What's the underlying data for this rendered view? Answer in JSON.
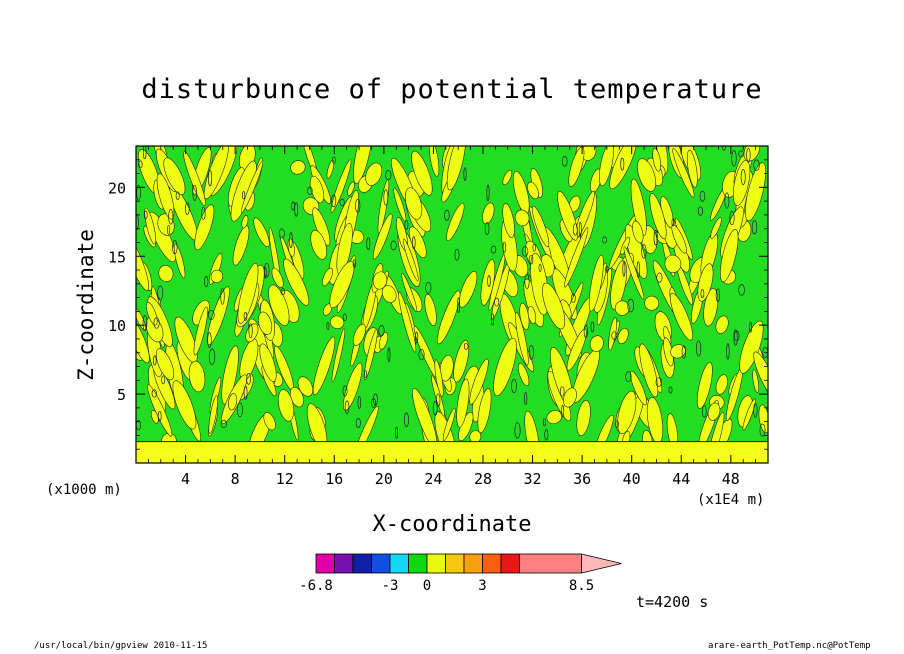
{
  "chart_data": {
    "type": "heatmap",
    "title": "disturbunce of potential temperature",
    "xlabel": "X-coordinate",
    "ylabel": "Z-coordinate",
    "x_unit": "(x1E4 m)",
    "z_unit": "(x1000 m)",
    "xlim": [
      0,
      51
    ],
    "ylim": [
      0,
      23
    ],
    "x_ticks": [
      4,
      8,
      12,
      16,
      20,
      24,
      28,
      32,
      36,
      40,
      44,
      48
    ],
    "y_ticks": [
      5,
      10,
      15,
      20
    ],
    "colorbar": {
      "labels": [
        {
          "text": "-6.8",
          "value": -6.8
        },
        {
          "text": "-3",
          "value": -3
        },
        {
          "text": "0",
          "value": 0
        },
        {
          "text": "3",
          "value": 3
        },
        {
          "text": "8.5",
          "value": 8.5
        }
      ],
      "colors": [
        "#e000a8",
        "#7a0fb0",
        "#1020a8",
        "#1050e0",
        "#10d8f0",
        "#10d810",
        "#e8f810",
        "#f8c810",
        "#f8a010",
        "#f86010",
        "#e81818",
        "#ff8080",
        "#ffb8b8"
      ]
    },
    "dominant_colors": {
      "background_field": "#22dd22",
      "positive_streaks": "#eeff11",
      "boundary_layer": "#f5ff1a"
    },
    "time": "t=4200 s"
  },
  "footer": {
    "left": "/usr/local/bin/gpview  2010-11-15",
    "right": "arare-earth_PotTemp.nc@PotTemp"
  }
}
